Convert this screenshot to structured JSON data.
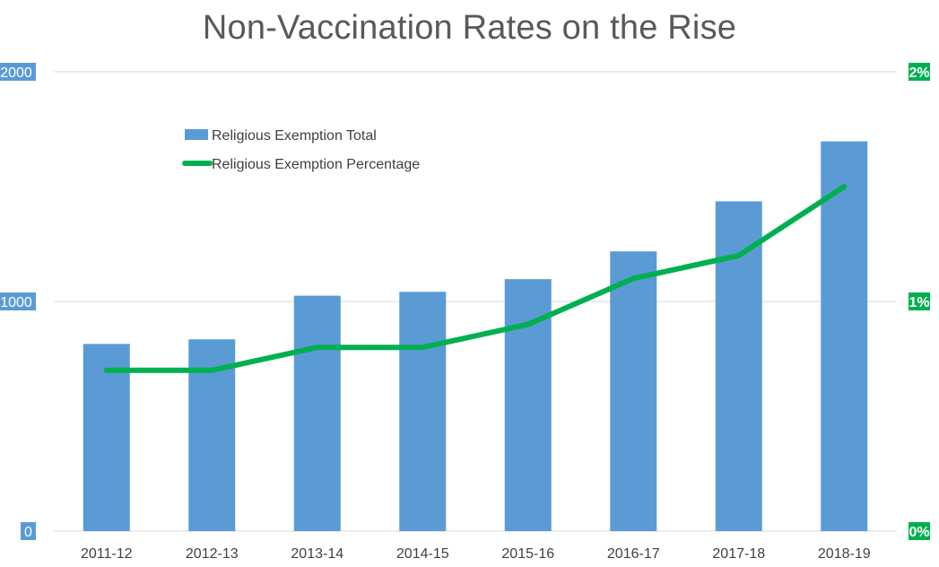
{
  "chart_data": {
    "type": "bar",
    "title": "Non-Vaccination Rates on the Rise",
    "categories": [
      "2011-12",
      "2012-13",
      "2013-14",
      "2014-15",
      "2015-16",
      "2016-17",
      "2017-18",
      "2018-19"
    ],
    "series": [
      {
        "name": "Religious Exemption Total",
        "type": "bar",
        "axis": "left",
        "values": [
          815,
          835,
          1025,
          1042,
          1097,
          1218,
          1436,
          1697
        ],
        "color": "#5b9bd5"
      },
      {
        "name": "Religious Exemption Percentage",
        "type": "line",
        "axis": "right",
        "values": [
          0.7,
          0.7,
          0.8,
          0.8,
          0.9,
          1.1,
          1.2,
          1.5
        ],
        "color": "#00b050"
      }
    ],
    "y_left": {
      "ylim": [
        0,
        2000
      ],
      "ticks": [
        "0",
        "1000",
        "2000"
      ],
      "tick_color": "#5b9bd5"
    },
    "y_right": {
      "ylim": [
        0,
        2
      ],
      "ticks": [
        "0%",
        "1%",
        "2%"
      ],
      "tick_color": "#00b050"
    },
    "grid": true,
    "legend": "top-left inside plot"
  }
}
